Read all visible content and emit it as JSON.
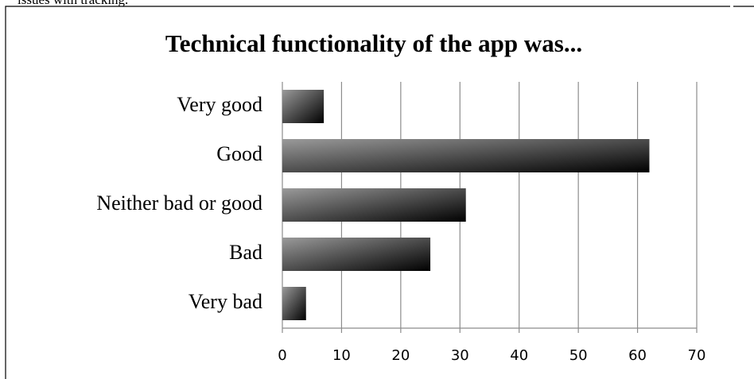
{
  "text_above": "issues with tracking.",
  "chart_data": {
    "type": "bar",
    "orientation": "horizontal",
    "title": "Technical functionality of the app was...",
    "categories": [
      "Very good",
      "Good",
      "Neither bad or good",
      "Bad",
      "Very bad"
    ],
    "values": [
      7,
      62,
      31,
      25,
      4
    ],
    "xlim": [
      0,
      70
    ],
    "xticks": [
      0,
      10,
      20,
      30,
      40,
      50,
      60,
      70
    ],
    "grid": true
  }
}
